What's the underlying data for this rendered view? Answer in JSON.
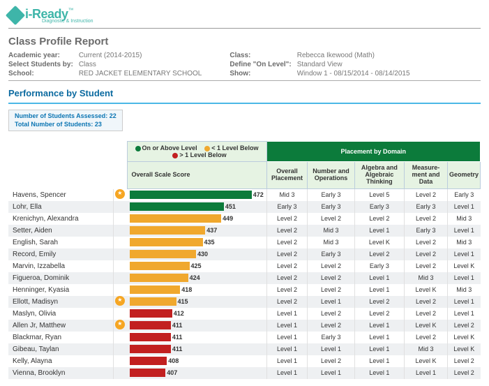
{
  "logo": {
    "text": "i-Ready",
    "sub": "Diagnostic & Instruction"
  },
  "report_title": "Class Profile Report",
  "meta_left": {
    "academic_year_label": "Academic year:",
    "academic_year": "Current (2014-2015)",
    "select_by_label": "Select Students by:",
    "select_by": "Class",
    "school_label": "School:",
    "school": "RED JACKET ELEMENTARY SCHOOL"
  },
  "meta_right": {
    "class_label": "Class:",
    "class": "Rebecca Ikewood (Math)",
    "define_label": "Define \"On Level\":",
    "define": "Standard View",
    "show_label": "Show:",
    "show": "Window 1 - 08/15/2014 - 08/14/2015"
  },
  "section_title": "Performance by Student",
  "summary": {
    "line1": "Number of Students Assessed: 22",
    "line2": "Total Number of Students: 23"
  },
  "legend": {
    "on": "On or Above Level",
    "below1": "< 1 Level Below",
    "belowmore": "> 1 Level Below",
    "colors": {
      "on": "#0c7b3b",
      "below1": "#f0a82e",
      "belowmore": "#c22020"
    }
  },
  "header": {
    "overall_score": "Overall Scale Score",
    "placement_by_domain": "Placement by Domain",
    "overall_placement": "Overall Placement",
    "domains": [
      "Number and Operations",
      "Algebra and Algebraic Thinking",
      "Measure- ment and Data",
      "Geometry"
    ]
  },
  "bar_chart": {
    "min_score": 380,
    "max_score": 480
  },
  "students": [
    {
      "name": "Havens, Spencer",
      "star": true,
      "score": 472,
      "color": "#0c7b3b",
      "overall": "Mid 3",
      "d": [
        "Early 3",
        "Level 5",
        "Level 2",
        "Early 3"
      ]
    },
    {
      "name": "Lohr, Ella",
      "star": false,
      "score": 451,
      "color": "#0c7b3b",
      "overall": "Early 3",
      "d": [
        "Early 3",
        "Early 3",
        "Early 3",
        "Level 1"
      ]
    },
    {
      "name": "Krenichyn, Alexandra",
      "star": false,
      "score": 449,
      "color": "#f0a82e",
      "overall": "Level 2",
      "d": [
        "Level 2",
        "Level 2",
        "Level 2",
        "Mid 3"
      ]
    },
    {
      "name": "Setter, Aiden",
      "star": false,
      "score": 437,
      "color": "#f0a82e",
      "overall": "Level 2",
      "d": [
        "Mid 3",
        "Level 1",
        "Early 3",
        "Level 1"
      ]
    },
    {
      "name": "English, Sarah",
      "star": false,
      "score": 435,
      "color": "#f0a82e",
      "overall": "Level 2",
      "d": [
        "Mid 3",
        "Level K",
        "Level 2",
        "Mid 3"
      ]
    },
    {
      "name": "Record, Emily",
      "star": false,
      "score": 430,
      "color": "#f0a82e",
      "overall": "Level 2",
      "d": [
        "Early 3",
        "Level 2",
        "Level 2",
        "Level 1"
      ]
    },
    {
      "name": "Marvin, Izzabella",
      "star": false,
      "score": 425,
      "color": "#f0a82e",
      "overall": "Level 2",
      "d": [
        "Level 2",
        "Early 3",
        "Level 2",
        "Level K"
      ]
    },
    {
      "name": "Figueroa, Dominik",
      "star": false,
      "score": 424,
      "color": "#f0a82e",
      "overall": "Level 2",
      "d": [
        "Level 2",
        "Level 1",
        "Mid 3",
        "Level 1"
      ]
    },
    {
      "name": "Henninger, Kyasia",
      "star": false,
      "score": 418,
      "color": "#f0a82e",
      "overall": "Level 2",
      "d": [
        "Level 2",
        "Level 1",
        "Level K",
        "Mid 3"
      ]
    },
    {
      "name": "Ellott, Madisyn",
      "star": true,
      "score": 415,
      "color": "#f0a82e",
      "overall": "Level 2",
      "d": [
        "Level 1",
        "Level 2",
        "Level 2",
        "Level 1"
      ]
    },
    {
      "name": "Maslyn, Olivia",
      "star": false,
      "score": 412,
      "color": "#c22020",
      "overall": "Level 1",
      "d": [
        "Level 2",
        "Level 2",
        "Level 2",
        "Level 1"
      ]
    },
    {
      "name": "Allen Jr, Matthew",
      "star": true,
      "score": 411,
      "color": "#c22020",
      "overall": "Level 1",
      "d": [
        "Level 2",
        "Level 1",
        "Level K",
        "Level 2"
      ]
    },
    {
      "name": "Blackmar, Ryan",
      "star": false,
      "score": 411,
      "color": "#c22020",
      "overall": "Level 1",
      "d": [
        "Early 3",
        "Level 1",
        "Level 2",
        "Level K"
      ]
    },
    {
      "name": "Gibeau, Taylan",
      "star": false,
      "score": 411,
      "color": "#c22020",
      "overall": "Level 1",
      "d": [
        "Level 1",
        "Level 1",
        "Mid 3",
        "Level K"
      ]
    },
    {
      "name": "Kelly, Alayna",
      "star": false,
      "score": 408,
      "color": "#c22020",
      "overall": "Level 1",
      "d": [
        "Level 2",
        "Level 1",
        "Level K",
        "Level 2"
      ]
    },
    {
      "name": "Vienna, Brooklyn",
      "star": false,
      "score": 407,
      "color": "#c22020",
      "overall": "Level 1",
      "d": [
        "Level 1",
        "Level 1",
        "Level 1",
        "Level 2"
      ]
    }
  ]
}
